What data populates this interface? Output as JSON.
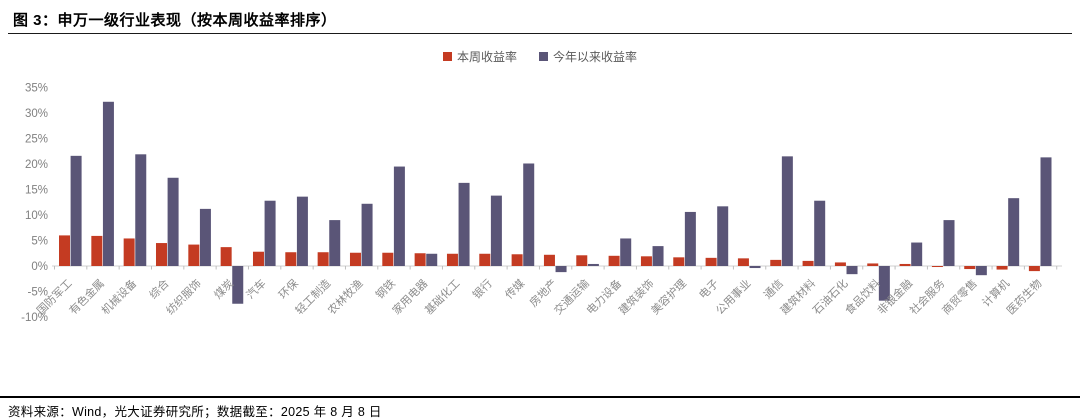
{
  "figure": {
    "title": "图 3：申万一级行业表现（按本周收益率排序）",
    "source_note": "资料来源：Wind，光大证券研究所；数据截至：2025 年 8 月 8 日"
  },
  "legend": {
    "weekly_label": "本周收益率",
    "ytd_label": "今年以来收益率"
  },
  "colors": {
    "weekly": "#c43b22",
    "ytd": "#5a5577",
    "axis_line": "#d9d9d9",
    "tick_line": "#bfbfbf",
    "axis_text": "#808080",
    "category_text": "#8c8c8c"
  },
  "chart_data": {
    "type": "bar",
    "title": "申万一级行业表现（按本周收益率排序）",
    "categories": [
      "国防军工",
      "有色金属",
      "机械设备",
      "综合",
      "纺织服饰",
      "煤炭",
      "汽车",
      "环保",
      "轻工制造",
      "农林牧渔",
      "钢铁",
      "家用电器",
      "基础化工",
      "银行",
      "传媒",
      "房地产",
      "交通运输",
      "电力设备",
      "建筑装饰",
      "美容护理",
      "电子",
      "公用事业",
      "通信",
      "建筑材料",
      "石油石化",
      "食品饮料",
      "非银金融",
      "社会服务",
      "商贸零售",
      "计算机",
      "医药生物"
    ],
    "series": [
      {
        "name": "本周收益率",
        "values": [
          6.0,
          5.9,
          5.4,
          4.5,
          4.2,
          3.7,
          2.8,
          2.7,
          2.7,
          2.6,
          2.6,
          2.5,
          2.4,
          2.4,
          2.3,
          2.2,
          2.1,
          2.0,
          1.9,
          1.7,
          1.6,
          1.5,
          1.2,
          1.0,
          0.7,
          0.5,
          0.4,
          -0.2,
          -0.6,
          -0.7,
          -1.0
        ]
      },
      {
        "name": "今年以来收益率",
        "values": [
          21.6,
          32.2,
          21.9,
          17.3,
          11.2,
          -7.4,
          12.8,
          13.6,
          9.0,
          12.2,
          19.5,
          2.4,
          16.3,
          13.8,
          20.1,
          -1.2,
          0.4,
          5.4,
          3.9,
          10.6,
          11.7,
          -0.4,
          21.5,
          12.8,
          -1.6,
          -6.8,
          4.6,
          9.0,
          -1.8,
          13.3,
          21.3
        ]
      }
    ],
    "xlabel": "",
    "ylabel": "",
    "ylim": [
      -10,
      35
    ],
    "ytick_step": 5,
    "ytick_format": "percent",
    "grid": false,
    "legend_position": "top-center"
  }
}
